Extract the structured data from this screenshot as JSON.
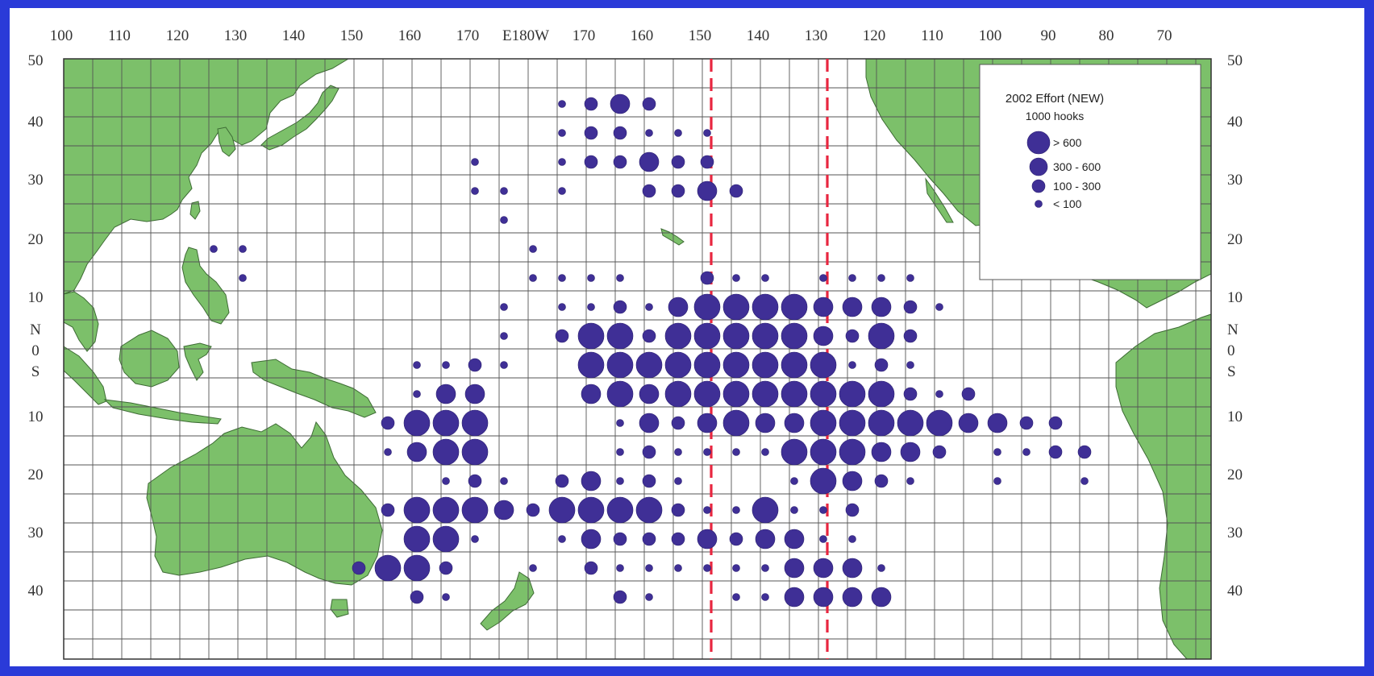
{
  "map": {
    "lon_ticks": [
      "100",
      "110",
      "120",
      "130",
      "140",
      "150",
      "160",
      "170",
      "E180W",
      "170",
      "160",
      "150",
      "140",
      "130",
      "120",
      "110",
      "100",
      "90",
      "80",
      "70"
    ],
    "lat_ticks_left": [
      "50",
      "40",
      "30",
      "20",
      "10",
      "N",
      "0",
      "S",
      "10",
      "20",
      "30",
      "40"
    ],
    "lat_ticks_right": [
      "50",
      "40",
      "30",
      "20",
      "10",
      "N",
      "0",
      "S",
      "10",
      "20",
      "30",
      "40"
    ],
    "grid": {
      "cols": 40,
      "rows": 19
    },
    "effort_colors": {
      "dot": "#3f2f96",
      "land": "#7cc06a",
      "boundary": "#e8263f",
      "background": "#2a3ad8"
    }
  },
  "legend": {
    "title": "2002 Effort (NEW)",
    "subtitle": "1000 hooks",
    "classes": [
      "> 600",
      "300 - 600",
      "100 - 300",
      "< 100"
    ]
  },
  "effort_cells": [
    {
      "col": 17,
      "row": 1,
      "size": 1
    },
    {
      "col": 18,
      "row": 1,
      "size": 2
    },
    {
      "col": 19,
      "row": 1,
      "size": 3
    },
    {
      "col": 20,
      "row": 1,
      "size": 2
    },
    {
      "col": 17,
      "row": 2,
      "size": 1
    },
    {
      "col": 18,
      "row": 2,
      "size": 2
    },
    {
      "col": 19,
      "row": 2,
      "size": 2
    },
    {
      "col": 20,
      "row": 2,
      "size": 1
    },
    {
      "col": 21,
      "row": 2,
      "size": 1
    },
    {
      "col": 22,
      "row": 2,
      "size": 1
    },
    {
      "col": 14,
      "row": 3,
      "size": 1
    },
    {
      "col": 17,
      "row": 3,
      "size": 1
    },
    {
      "col": 18,
      "row": 3,
      "size": 2
    },
    {
      "col": 19,
      "row": 3,
      "size": 2
    },
    {
      "col": 20,
      "row": 3,
      "size": 3
    },
    {
      "col": 21,
      "row": 3,
      "size": 2
    },
    {
      "col": 22,
      "row": 3,
      "size": 2
    },
    {
      "col": 14,
      "row": 4,
      "size": 1
    },
    {
      "col": 15,
      "row": 4,
      "size": 1
    },
    {
      "col": 17,
      "row": 4,
      "size": 1
    },
    {
      "col": 20,
      "row": 4,
      "size": 2
    },
    {
      "col": 21,
      "row": 4,
      "size": 2
    },
    {
      "col": 22,
      "row": 4,
      "size": 3
    },
    {
      "col": 23,
      "row": 4,
      "size": 2
    },
    {
      "col": 15,
      "row": 5,
      "size": 1
    },
    {
      "col": 5,
      "row": 6,
      "size": 1
    },
    {
      "col": 6,
      "row": 6,
      "size": 1
    },
    {
      "col": 16,
      "row": 6,
      "size": 1
    },
    {
      "col": 6,
      "row": 7,
      "size": 1
    },
    {
      "col": 16,
      "row": 7,
      "size": 1
    },
    {
      "col": 17,
      "row": 7,
      "size": 1
    },
    {
      "col": 18,
      "row": 7,
      "size": 1
    },
    {
      "col": 19,
      "row": 7,
      "size": 1
    },
    {
      "col": 22,
      "row": 7,
      "size": 2
    },
    {
      "col": 23,
      "row": 7,
      "size": 1
    },
    {
      "col": 24,
      "row": 7,
      "size": 1
    },
    {
      "col": 26,
      "row": 7,
      "size": 1
    },
    {
      "col": 27,
      "row": 7,
      "size": 1
    },
    {
      "col": 28,
      "row": 7,
      "size": 1
    },
    {
      "col": 29,
      "row": 7,
      "size": 1
    },
    {
      "col": 15,
      "row": 8,
      "size": 1
    },
    {
      "col": 17,
      "row": 8,
      "size": 1
    },
    {
      "col": 18,
      "row": 8,
      "size": 1
    },
    {
      "col": 19,
      "row": 8,
      "size": 2
    },
    {
      "col": 20,
      "row": 8,
      "size": 1
    },
    {
      "col": 21,
      "row": 8,
      "size": 3
    },
    {
      "col": 22,
      "row": 8,
      "size": 4
    },
    {
      "col": 23,
      "row": 8,
      "size": 4
    },
    {
      "col": 24,
      "row": 8,
      "size": 4
    },
    {
      "col": 25,
      "row": 8,
      "size": 4
    },
    {
      "col": 26,
      "row": 8,
      "size": 3
    },
    {
      "col": 27,
      "row": 8,
      "size": 3
    },
    {
      "col": 28,
      "row": 8,
      "size": 3
    },
    {
      "col": 29,
      "row": 8,
      "size": 2
    },
    {
      "col": 30,
      "row": 8,
      "size": 1
    },
    {
      "col": 15,
      "row": 9,
      "size": 1
    },
    {
      "col": 17,
      "row": 9,
      "size": 2
    },
    {
      "col": 18,
      "row": 9,
      "size": 4
    },
    {
      "col": 19,
      "row": 9,
      "size": 4
    },
    {
      "col": 20,
      "row": 9,
      "size": 2
    },
    {
      "col": 21,
      "row": 9,
      "size": 4
    },
    {
      "col": 22,
      "row": 9,
      "size": 4
    },
    {
      "col": 23,
      "row": 9,
      "size": 4
    },
    {
      "col": 24,
      "row": 9,
      "size": 4
    },
    {
      "col": 25,
      "row": 9,
      "size": 4
    },
    {
      "col": 26,
      "row": 9,
      "size": 3
    },
    {
      "col": 27,
      "row": 9,
      "size": 2
    },
    {
      "col": 28,
      "row": 9,
      "size": 4
    },
    {
      "col": 29,
      "row": 9,
      "size": 2
    },
    {
      "col": 12,
      "row": 10,
      "size": 1
    },
    {
      "col": 13,
      "row": 10,
      "size": 1
    },
    {
      "col": 14,
      "row": 10,
      "size": 2
    },
    {
      "col": 15,
      "row": 10,
      "size": 1
    },
    {
      "col": 18,
      "row": 10,
      "size": 4
    },
    {
      "col": 19,
      "row": 10,
      "size": 4
    },
    {
      "col": 20,
      "row": 10,
      "size": 4
    },
    {
      "col": 21,
      "row": 10,
      "size": 4
    },
    {
      "col": 22,
      "row": 10,
      "size": 4
    },
    {
      "col": 23,
      "row": 10,
      "size": 4
    },
    {
      "col": 24,
      "row": 10,
      "size": 4
    },
    {
      "col": 25,
      "row": 10,
      "size": 4
    },
    {
      "col": 26,
      "row": 10,
      "size": 4
    },
    {
      "col": 27,
      "row": 10,
      "size": 1
    },
    {
      "col": 28,
      "row": 10,
      "size": 2
    },
    {
      "col": 29,
      "row": 10,
      "size": 1
    },
    {
      "col": 12,
      "row": 11,
      "size": 1
    },
    {
      "col": 13,
      "row": 11,
      "size": 3
    },
    {
      "col": 14,
      "row": 11,
      "size": 3
    },
    {
      "col": 18,
      "row": 11,
      "size": 3
    },
    {
      "col": 19,
      "row": 11,
      "size": 4
    },
    {
      "col": 20,
      "row": 11,
      "size": 3
    },
    {
      "col": 21,
      "row": 11,
      "size": 4
    },
    {
      "col": 22,
      "row": 11,
      "size": 4
    },
    {
      "col": 23,
      "row": 11,
      "size": 4
    },
    {
      "col": 24,
      "row": 11,
      "size": 4
    },
    {
      "col": 25,
      "row": 11,
      "size": 4
    },
    {
      "col": 26,
      "row": 11,
      "size": 4
    },
    {
      "col": 27,
      "row": 11,
      "size": 4
    },
    {
      "col": 28,
      "row": 11,
      "size": 4
    },
    {
      "col": 29,
      "row": 11,
      "size": 2
    },
    {
      "col": 30,
      "row": 11,
      "size": 1
    },
    {
      "col": 31,
      "row": 11,
      "size": 2
    },
    {
      "col": 11,
      "row": 12,
      "size": 2
    },
    {
      "col": 12,
      "row": 12,
      "size": 4
    },
    {
      "col": 13,
      "row": 12,
      "size": 4
    },
    {
      "col": 14,
      "row": 12,
      "size": 4
    },
    {
      "col": 19,
      "row": 12,
      "size": 1
    },
    {
      "col": 20,
      "row": 12,
      "size": 3
    },
    {
      "col": 21,
      "row": 12,
      "size": 2
    },
    {
      "col": 22,
      "row": 12,
      "size": 3
    },
    {
      "col": 23,
      "row": 12,
      "size": 4
    },
    {
      "col": 24,
      "row": 12,
      "size": 3
    },
    {
      "col": 25,
      "row": 12,
      "size": 3
    },
    {
      "col": 26,
      "row": 12,
      "size": 4
    },
    {
      "col": 27,
      "row": 12,
      "size": 4
    },
    {
      "col": 28,
      "row": 12,
      "size": 4
    },
    {
      "col": 29,
      "row": 12,
      "size": 4
    },
    {
      "col": 30,
      "row": 12,
      "size": 4
    },
    {
      "col": 31,
      "row": 12,
      "size": 3
    },
    {
      "col": 32,
      "row": 12,
      "size": 3
    },
    {
      "col": 33,
      "row": 12,
      "size": 2
    },
    {
      "col": 34,
      "row": 12,
      "size": 2
    },
    {
      "col": 11,
      "row": 13,
      "size": 1
    },
    {
      "col": 12,
      "row": 13,
      "size": 3
    },
    {
      "col": 13,
      "row": 13,
      "size": 4
    },
    {
      "col": 14,
      "row": 13,
      "size": 4
    },
    {
      "col": 19,
      "row": 13,
      "size": 1
    },
    {
      "col": 20,
      "row": 13,
      "size": 2
    },
    {
      "col": 21,
      "row": 13,
      "size": 1
    },
    {
      "col": 22,
      "row": 13,
      "size": 1
    },
    {
      "col": 23,
      "row": 13,
      "size": 1
    },
    {
      "col": 24,
      "row": 13,
      "size": 1
    },
    {
      "col": 25,
      "row": 13,
      "size": 4
    },
    {
      "col": 26,
      "row": 13,
      "size": 4
    },
    {
      "col": 27,
      "row": 13,
      "size": 4
    },
    {
      "col": 28,
      "row": 13,
      "size": 3
    },
    {
      "col": 29,
      "row": 13,
      "size": 3
    },
    {
      "col": 30,
      "row": 13,
      "size": 2
    },
    {
      "col": 32,
      "row": 13,
      "size": 1
    },
    {
      "col": 33,
      "row": 13,
      "size": 1
    },
    {
      "col": 34,
      "row": 13,
      "size": 2
    },
    {
      "col": 35,
      "row": 13,
      "size": 2
    },
    {
      "col": 13,
      "row": 14,
      "size": 1
    },
    {
      "col": 14,
      "row": 14,
      "size": 2
    },
    {
      "col": 15,
      "row": 14,
      "size": 1
    },
    {
      "col": 17,
      "row": 14,
      "size": 2
    },
    {
      "col": 18,
      "row": 14,
      "size": 3
    },
    {
      "col": 19,
      "row": 14,
      "size": 1
    },
    {
      "col": 20,
      "row": 14,
      "size": 2
    },
    {
      "col": 21,
      "row": 14,
      "size": 1
    },
    {
      "col": 25,
      "row": 14,
      "size": 1
    },
    {
      "col": 26,
      "row": 14,
      "size": 4
    },
    {
      "col": 27,
      "row": 14,
      "size": 3
    },
    {
      "col": 28,
      "row": 14,
      "size": 2
    },
    {
      "col": 29,
      "row": 14,
      "size": 1
    },
    {
      "col": 32,
      "row": 14,
      "size": 1
    },
    {
      "col": 35,
      "row": 14,
      "size": 1
    },
    {
      "col": 11,
      "row": 15,
      "size": 2
    },
    {
      "col": 12,
      "row": 15,
      "size": 4
    },
    {
      "col": 13,
      "row": 15,
      "size": 4
    },
    {
      "col": 14,
      "row": 15,
      "size": 4
    },
    {
      "col": 15,
      "row": 15,
      "size": 3
    },
    {
      "col": 16,
      "row": 15,
      "size": 2
    },
    {
      "col": 17,
      "row": 15,
      "size": 4
    },
    {
      "col": 18,
      "row": 15,
      "size": 4
    },
    {
      "col": 19,
      "row": 15,
      "size": 4
    },
    {
      "col": 20,
      "row": 15,
      "size": 4
    },
    {
      "col": 21,
      "row": 15,
      "size": 2
    },
    {
      "col": 22,
      "row": 15,
      "size": 1
    },
    {
      "col": 23,
      "row": 15,
      "size": 1
    },
    {
      "col": 24,
      "row": 15,
      "size": 4
    },
    {
      "col": 25,
      "row": 15,
      "size": 1
    },
    {
      "col": 26,
      "row": 15,
      "size": 1
    },
    {
      "col": 27,
      "row": 15,
      "size": 2
    },
    {
      "col": 12,
      "row": 16,
      "size": 4
    },
    {
      "col": 13,
      "row": 16,
      "size": 4
    },
    {
      "col": 14,
      "row": 16,
      "size": 1
    },
    {
      "col": 17,
      "row": 16,
      "size": 1
    },
    {
      "col": 18,
      "row": 16,
      "size": 3
    },
    {
      "col": 19,
      "row": 16,
      "size": 2
    },
    {
      "col": 20,
      "row": 16,
      "size": 2
    },
    {
      "col": 21,
      "row": 16,
      "size": 2
    },
    {
      "col": 22,
      "row": 16,
      "size": 3
    },
    {
      "col": 23,
      "row": 16,
      "size": 2
    },
    {
      "col": 24,
      "row": 16,
      "size": 3
    },
    {
      "col": 25,
      "row": 16,
      "size": 3
    },
    {
      "col": 26,
      "row": 16,
      "size": 1
    },
    {
      "col": 27,
      "row": 16,
      "size": 1
    },
    {
      "col": 10,
      "row": 17,
      "size": 2
    },
    {
      "col": 11,
      "row": 17,
      "size": 4
    },
    {
      "col": 12,
      "row": 17,
      "size": 4
    },
    {
      "col": 13,
      "row": 17,
      "size": 2
    },
    {
      "col": 16,
      "row": 17,
      "size": 1
    },
    {
      "col": 18,
      "row": 17,
      "size": 2
    },
    {
      "col": 19,
      "row": 17,
      "size": 1
    },
    {
      "col": 20,
      "row": 17,
      "size": 1
    },
    {
      "col": 21,
      "row": 17,
      "size": 1
    },
    {
      "col": 22,
      "row": 17,
      "size": 1
    },
    {
      "col": 23,
      "row": 17,
      "size": 1
    },
    {
      "col": 24,
      "row": 17,
      "size": 1
    },
    {
      "col": 25,
      "row": 17,
      "size": 3
    },
    {
      "col": 26,
      "row": 17,
      "size": 3
    },
    {
      "col": 27,
      "row": 17,
      "size": 3
    },
    {
      "col": 28,
      "row": 17,
      "size": 1
    },
    {
      "col": 12,
      "row": 18,
      "size": 2
    },
    {
      "col": 13,
      "row": 18,
      "size": 1
    },
    {
      "col": 19,
      "row": 18,
      "size": 2
    },
    {
      "col": 20,
      "row": 18,
      "size": 1
    },
    {
      "col": 23,
      "row": 18,
      "size": 1
    },
    {
      "col": 24,
      "row": 18,
      "size": 1
    },
    {
      "col": 25,
      "row": 18,
      "size": 3
    },
    {
      "col": 26,
      "row": 18,
      "size": 3
    },
    {
      "col": 27,
      "row": 18,
      "size": 3
    },
    {
      "col": 28,
      "row": 18,
      "size": 3
    }
  ]
}
